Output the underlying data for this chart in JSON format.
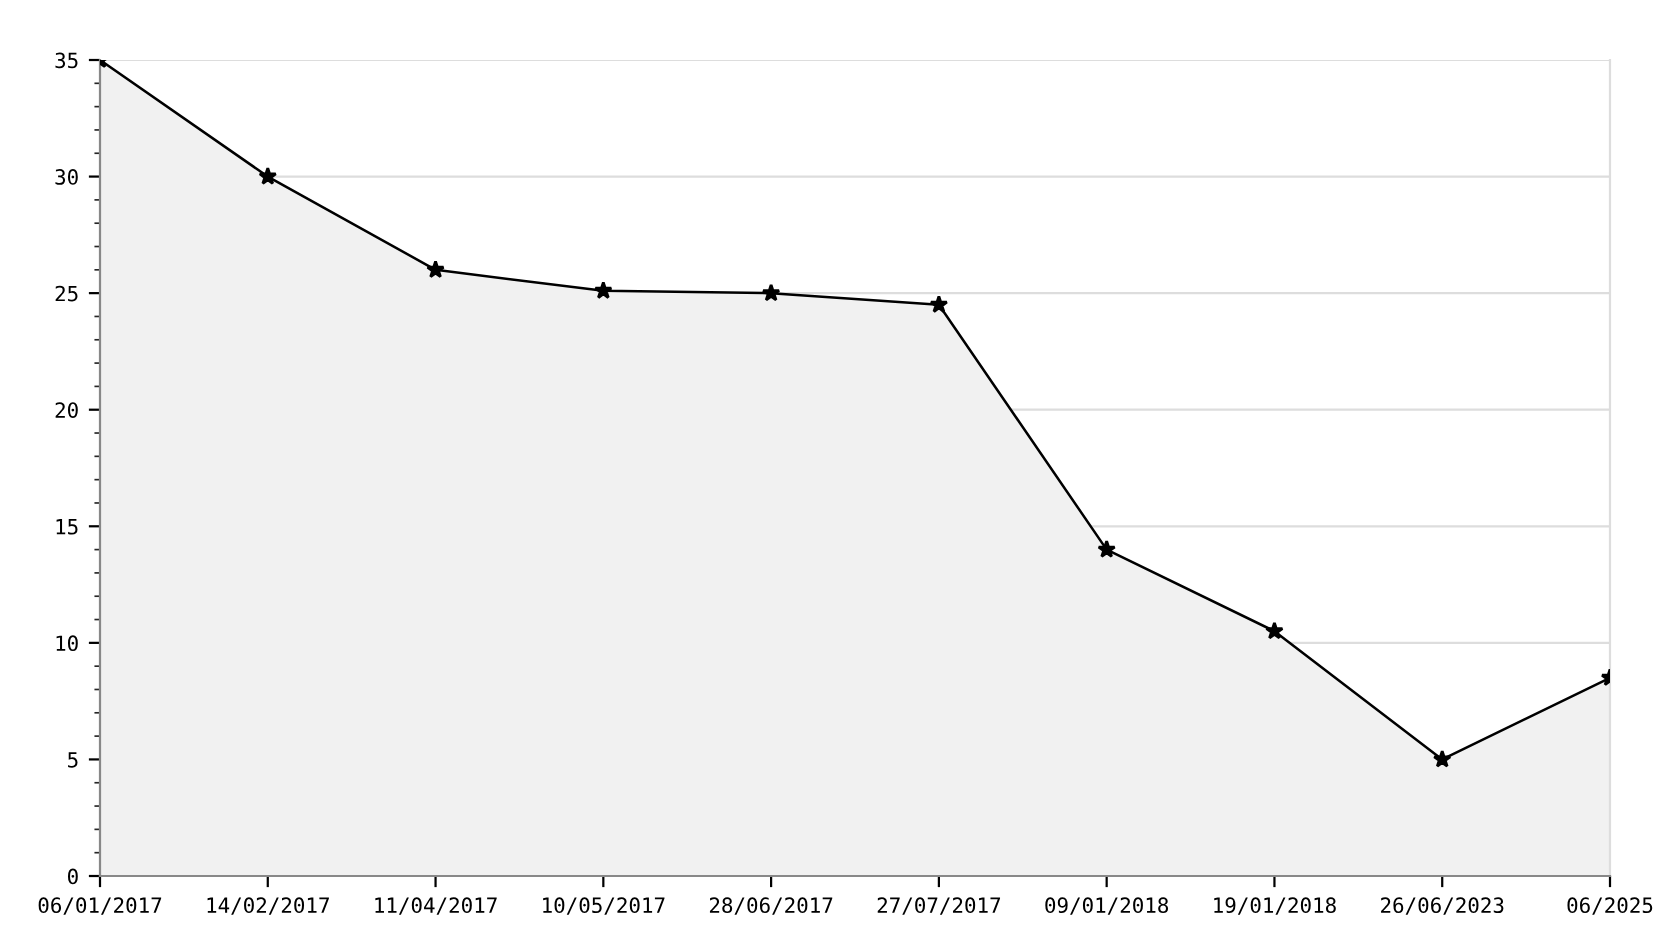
{
  "chart_data": {
    "type": "area",
    "categories": [
      "06/01/2017",
      "14/02/2017",
      "11/04/2017",
      "10/05/2017",
      "28/06/2017",
      "27/07/2017",
      "09/01/2018",
      "19/01/2018",
      "26/06/2023",
      "06/2025"
    ],
    "series": [
      {
        "color": "#000000",
        "values": [
          35,
          30,
          26,
          25.1,
          25,
          24.5,
          14,
          10.5,
          5,
          8.5
        ]
      }
    ],
    "ylim": [
      0,
      35
    ],
    "yticks": [
      0,
      5,
      10,
      15,
      20,
      25,
      30,
      35
    ],
    "grid": "y",
    "marker": "star",
    "line_style": "solid",
    "legend": false
  }
}
